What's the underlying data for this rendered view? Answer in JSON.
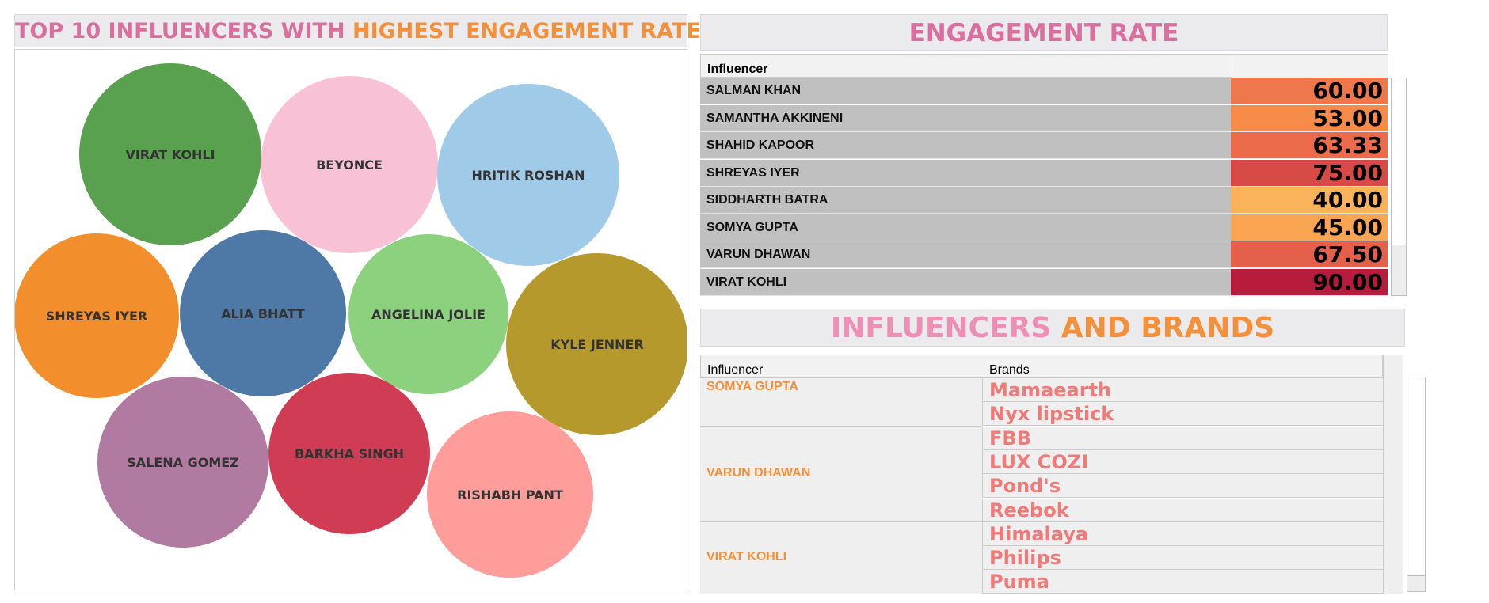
{
  "left_title": {
    "part1": "TOP 10 INFLUENCERS WITH",
    "part2": "HIGHEST ENGAGEMENT RATE"
  },
  "eng_title": "ENGAGEMENT RATE",
  "brands_title": {
    "part1": "INFLUENCERS",
    "part2": "AND BRANDS"
  },
  "colors": {
    "pink": "#d96f9d",
    "orange": "#f5903a",
    "title_bg": "#ebebee"
  },
  "chart_data": {
    "type": "bubble",
    "bubbles": [
      {
        "label": "VIRAT KOHLI",
        "color": "#59a14f"
      },
      {
        "label": "BEYONCE",
        "color": "#f9c1d5"
      },
      {
        "label": "HRITIK ROSHAN",
        "color": "#a0cbe8"
      },
      {
        "label": "SHREYAS IYER",
        "color": "#f28e2b"
      },
      {
        "label": "ALIA BHATT",
        "color": "#4e79a7"
      },
      {
        "label": "ANGELINA JOLIE",
        "color": "#8cd17d"
      },
      {
        "label": "KYLE JENNER",
        "color": "#b6992d"
      },
      {
        "label": "SALENA GOMEZ",
        "color": "#b07aa1"
      },
      {
        "label": "BARKHA SINGH",
        "color": "#d13c55"
      },
      {
        "label": "RISHABH PANT",
        "color": "#ff9d9a"
      }
    ]
  },
  "engagement": {
    "header": "Influencer",
    "rows": [
      {
        "name": "SALMAN KHAN",
        "value": "60.00",
        "color": "#ef774c"
      },
      {
        "name": "SAMANTHA AKKINENI",
        "value": "53.00",
        "color": "#f78c4a"
      },
      {
        "name": "SHAHID KAPOOR",
        "value": "63.33",
        "color": "#ec6b4a"
      },
      {
        "name": "SHREYAS IYER",
        "value": "75.00",
        "color": "#d84a45"
      },
      {
        "name": "SIDDHARTH BATRA",
        "value": "40.00",
        "color": "#fbb35b"
      },
      {
        "name": "SOMYA GUPTA",
        "value": "45.00",
        "color": "#faa552"
      },
      {
        "name": "VARUN DHAWAN",
        "value": "67.50",
        "color": "#e5604a"
      },
      {
        "name": "VIRAT KOHLI",
        "value": "90.00",
        "color": "#b81c3c"
      }
    ]
  },
  "brands": {
    "header_influencer": "Influencer",
    "header_brands": "Brands",
    "groups": [
      {
        "influencer": "SOMYA GUPTA",
        "brands": [
          "Mamaearth",
          "Nyx lipstick"
        ]
      },
      {
        "influencer": "VARUN DHAWAN",
        "brands": [
          "FBB",
          "LUX COZI",
          "Pond's",
          "Reebok"
        ]
      },
      {
        "influencer": "VIRAT KOHLI",
        "brands": [
          "Himalaya",
          "Philips",
          "Puma"
        ]
      }
    ]
  }
}
